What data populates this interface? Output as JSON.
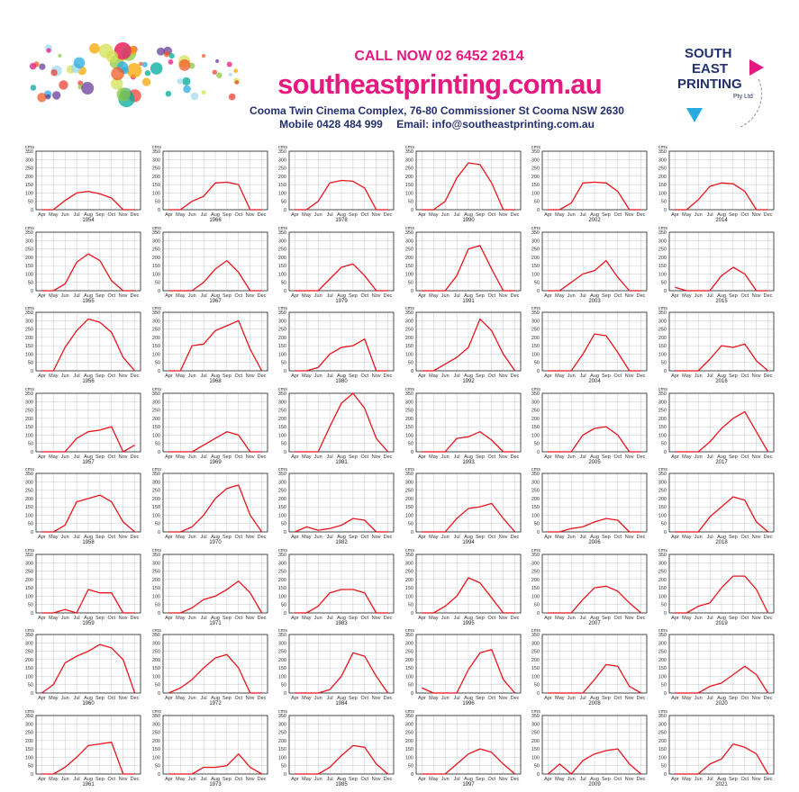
{
  "header": {
    "call_line": "CALL NOW 02 6452 2614",
    "website": "southeastprinting.com.au",
    "address": "Cooma Twin Cinema Complex, 76-80 Commissioner St Cooma NSW 2630",
    "mobile": "Mobile 0428 484 999",
    "email": "Email:  info@southeastprinting.com.au"
  },
  "brand": {
    "line1": "SOUTH",
    "line2": "EAST",
    "line3": "PRINTING",
    "pty": "Pty Ltd",
    "colors": {
      "navy": "#23306e",
      "pink": "#e5197f",
      "cyan": "#29abe2"
    }
  },
  "chart_data": {
    "type": "line",
    "y_label": "cms",
    "ylim": [
      0,
      350
    ],
    "yticks": [
      "0",
      "50",
      "100",
      "150",
      "200",
      "250",
      "300",
      "350"
    ],
    "months": [
      "Apr",
      "May",
      "Jun",
      "Jul",
      "Aug",
      "Sep",
      "Oct",
      "Nov",
      "Dec"
    ],
    "line_color": "#e8141c",
    "grid": true,
    "panels": [
      {
        "year": "1954",
        "values": [
          0,
          0,
          55,
          100,
          110,
          95,
          70,
          0,
          0
        ]
      },
      {
        "year": "1966",
        "values": [
          0,
          0,
          50,
          80,
          160,
          165,
          150,
          0,
          0
        ]
      },
      {
        "year": "1978",
        "values": [
          0,
          0,
          50,
          160,
          175,
          170,
          130,
          0,
          0
        ]
      },
      {
        "year": "1990",
        "values": [
          0,
          0,
          50,
          190,
          280,
          270,
          160,
          0,
          0
        ]
      },
      {
        "year": "2002",
        "values": [
          0,
          0,
          40,
          160,
          165,
          160,
          110,
          0,
          0
        ]
      },
      {
        "year": "2014",
        "values": [
          0,
          0,
          60,
          140,
          160,
          155,
          110,
          0,
          0
        ]
      },
      {
        "year": "1955",
        "values": [
          0,
          0,
          40,
          170,
          220,
          180,
          60,
          0,
          0
        ]
      },
      {
        "year": "1967",
        "values": [
          0,
          0,
          0,
          50,
          130,
          180,
          110,
          0,
          0
        ]
      },
      {
        "year": "1979",
        "values": [
          0,
          0,
          0,
          70,
          140,
          160,
          90,
          0,
          0
        ]
      },
      {
        "year": "1991",
        "values": [
          0,
          0,
          0,
          90,
          250,
          270,
          130,
          0,
          0
        ]
      },
      {
        "year": "2003",
        "values": [
          0,
          0,
          50,
          100,
          120,
          180,
          80,
          0,
          0
        ]
      },
      {
        "year": "2015",
        "values": [
          20,
          0,
          0,
          0,
          90,
          140,
          100,
          0,
          0
        ]
      },
      {
        "year": "1956",
        "values": [
          0,
          0,
          140,
          240,
          310,
          290,
          230,
          80,
          0
        ]
      },
      {
        "year": "1968",
        "values": [
          0,
          0,
          150,
          160,
          240,
          270,
          300,
          130,
          0
        ]
      },
      {
        "year": "1980",
        "values": [
          0,
          0,
          20,
          100,
          140,
          150,
          190,
          0,
          0
        ]
      },
      {
        "year": "1992",
        "values": [
          0,
          0,
          40,
          80,
          140,
          310,
          240,
          100,
          0
        ]
      },
      {
        "year": "2004",
        "values": [
          0,
          0,
          0,
          100,
          220,
          210,
          110,
          0,
          0
        ]
      },
      {
        "year": "2016",
        "values": [
          0,
          0,
          0,
          70,
          150,
          140,
          160,
          60,
          0
        ]
      },
      {
        "year": "1957",
        "values": [
          0,
          0,
          0,
          80,
          120,
          130,
          150,
          0,
          40
        ]
      },
      {
        "year": "1969",
        "values": [
          0,
          0,
          0,
          40,
          80,
          120,
          100,
          0,
          0
        ]
      },
      {
        "year": "1981",
        "values": [
          0,
          0,
          0,
          150,
          290,
          350,
          260,
          80,
          0
        ]
      },
      {
        "year": "1993",
        "values": [
          0,
          0,
          0,
          80,
          90,
          120,
          70,
          0,
          0
        ]
      },
      {
        "year": "2005",
        "values": [
          0,
          0,
          0,
          100,
          140,
          150,
          100,
          0,
          0
        ]
      },
      {
        "year": "2017",
        "values": [
          0,
          0,
          0,
          60,
          140,
          200,
          240,
          120,
          0
        ]
      },
      {
        "year": "1958",
        "values": [
          0,
          0,
          40,
          180,
          200,
          220,
          180,
          60,
          0
        ]
      },
      {
        "year": "1970",
        "values": [
          0,
          0,
          30,
          100,
          200,
          260,
          280,
          100,
          0
        ]
      },
      {
        "year": "1982",
        "values": [
          0,
          30,
          10,
          20,
          40,
          80,
          70,
          0,
          0
        ]
      },
      {
        "year": "1994",
        "values": [
          0,
          0,
          0,
          80,
          140,
          150,
          170,
          80,
          0
        ]
      },
      {
        "year": "2006",
        "values": [
          0,
          0,
          20,
          30,
          60,
          80,
          70,
          0,
          0
        ]
      },
      {
        "year": "2018",
        "values": [
          0,
          0,
          0,
          90,
          150,
          210,
          190,
          60,
          0
        ]
      },
      {
        "year": "1959",
        "values": [
          0,
          0,
          20,
          0,
          140,
          120,
          120,
          0,
          0
        ]
      },
      {
        "year": "1971",
        "values": [
          0,
          0,
          30,
          80,
          100,
          140,
          190,
          120,
          0
        ]
      },
      {
        "year": "1983",
        "values": [
          0,
          0,
          40,
          120,
          140,
          140,
          120,
          0,
          0
        ]
      },
      {
        "year": "1995",
        "values": [
          0,
          0,
          40,
          100,
          210,
          180,
          90,
          0,
          0
        ]
      },
      {
        "year": "2007",
        "values": [
          0,
          0,
          0,
          80,
          150,
          160,
          130,
          60,
          0
        ]
      },
      {
        "year": "2019",
        "values": [
          0,
          0,
          40,
          60,
          150,
          220,
          220,
          140,
          0
        ]
      },
      {
        "year": "1960",
        "values": [
          0,
          50,
          180,
          220,
          250,
          290,
          270,
          200,
          0
        ]
      },
      {
        "year": "1972",
        "values": [
          0,
          30,
          80,
          150,
          210,
          230,
          150,
          0,
          0
        ]
      },
      {
        "year": "1984",
        "values": [
          0,
          0,
          0,
          20,
          100,
          240,
          220,
          100,
          0
        ]
      },
      {
        "year": "1996",
        "values": [
          30,
          0,
          0,
          0,
          140,
          240,
          260,
          80,
          0
        ]
      },
      {
        "year": "2008",
        "values": [
          0,
          0,
          0,
          0,
          80,
          170,
          160,
          40,
          0
        ]
      },
      {
        "year": "2020",
        "values": [
          0,
          0,
          0,
          40,
          60,
          110,
          160,
          110,
          0
        ]
      },
      {
        "year": "1961",
        "values": [
          0,
          0,
          40,
          100,
          170,
          180,
          190,
          0,
          0
        ]
      },
      {
        "year": "1973",
        "values": [
          0,
          0,
          0,
          40,
          40,
          50,
          120,
          40,
          0
        ]
      },
      {
        "year": "1985",
        "values": [
          0,
          0,
          0,
          40,
          110,
          170,
          160,
          60,
          0
        ]
      },
      {
        "year": "1997",
        "values": [
          0,
          0,
          0,
          60,
          120,
          150,
          130,
          60,
          0
        ]
      },
      {
        "year": "2009",
        "values": [
          0,
          60,
          0,
          80,
          120,
          140,
          150,
          60,
          0
        ]
      },
      {
        "year": "2021",
        "values": [
          0,
          0,
          0,
          60,
          90,
          180,
          160,
          120,
          0
        ]
      }
    ]
  }
}
